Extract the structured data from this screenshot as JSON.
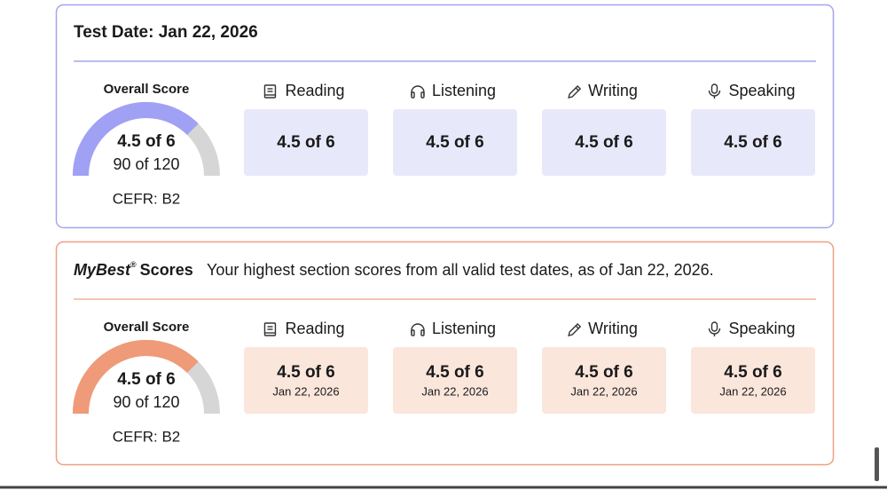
{
  "test_date": {
    "title": "Test Date: Jan 22, 2026",
    "overall": {
      "label": "Overall Score",
      "band": "4.5 of 6",
      "total": {
        "value": 90,
        "max": 120,
        "label": "90 of 120"
      },
      "cefr": "CEFR: B2"
    },
    "sections": [
      {
        "name": "Reading",
        "score": "4.5 of 6"
      },
      {
        "name": "Listening",
        "score": "4.5 of 6"
      },
      {
        "name": "Writing",
        "score": "4.5 of 6"
      },
      {
        "name": "Speaking",
        "score": "4.5 of 6"
      }
    ]
  },
  "mybest": {
    "title_brand": "MyBest",
    "title_mark": "®",
    "title_rest": "Scores",
    "description": "Your highest section scores from all valid test dates, as of Jan 22, 2026.",
    "overall": {
      "label": "Overall Score",
      "band": "4.5 of 6",
      "total": {
        "value": 90,
        "max": 120,
        "label": "90 of 120"
      },
      "cefr": "CEFR: B2"
    },
    "sections": [
      {
        "name": "Reading",
        "score": "4.5 of 6",
        "date": "Jan 22, 2026"
      },
      {
        "name": "Listening",
        "score": "4.5 of 6",
        "date": "Jan 22, 2026"
      },
      {
        "name": "Writing",
        "score": "4.5 of 6",
        "date": "Jan 22, 2026"
      },
      {
        "name": "Speaking",
        "score": "4.5 of 6",
        "date": "Jan 22, 2026"
      }
    ]
  }
}
